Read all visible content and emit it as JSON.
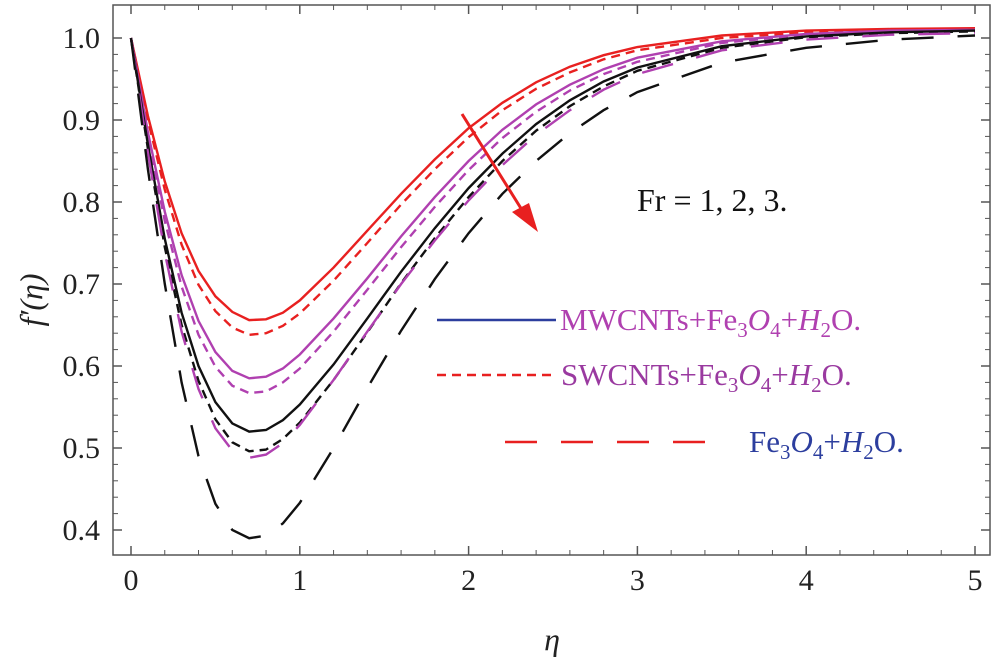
{
  "chart_data": {
    "type": "line",
    "title": "",
    "xlabel": "η",
    "ylabel": "f′(η)",
    "xlim": [
      0,
      5
    ],
    "ylim": [
      0.365,
      1.03
    ],
    "x_ticks": [
      "0",
      "1",
      "2",
      "3",
      "4",
      "5"
    ],
    "y_ticks": [
      "0.4",
      "0.5",
      "0.6",
      "0.7",
      "0.8",
      "0.9",
      "1.0"
    ],
    "annotation": "Fr = 1, 2, 3.",
    "legend": [
      {
        "parts": [
          {
            "t": "MWCNTs+Fe",
            "i": false
          },
          {
            "t": "3",
            "sub": true
          },
          {
            "t": "O",
            "i": true
          },
          {
            "t": "4",
            "sub": true
          },
          {
            "t": "+",
            "i": false
          },
          {
            "t": "H",
            "i": true
          },
          {
            "t": "2",
            "sub": true
          },
          {
            "t": "O.",
            "i": false
          }
        ],
        "text_color": "#b040b0",
        "sample_color": "#2c3e9e",
        "dash": "solid"
      },
      {
        "parts": [
          {
            "t": "SWCNTs+Fe",
            "i": false
          },
          {
            "t": "3",
            "sub": true
          },
          {
            "t": "O",
            "i": true
          },
          {
            "t": "4",
            "sub": true
          },
          {
            "t": "+",
            "i": false
          },
          {
            "t": "H",
            "i": true
          },
          {
            "t": "2",
            "sub": true
          },
          {
            "t": "O.",
            "i": false
          }
        ],
        "text_color": "#9a3aa0",
        "sample_color": "#e82020",
        "dash": "short"
      },
      {
        "parts": [
          {
            "t": "Fe",
            "i": false
          },
          {
            "t": "3",
            "sub": true
          },
          {
            "t": "O",
            "i": true
          },
          {
            "t": "4",
            "sub": true
          },
          {
            "t": "+",
            "i": false
          },
          {
            "t": "H",
            "i": true
          },
          {
            "t": "2",
            "sub": true
          },
          {
            "t": "O.",
            "i": false
          }
        ],
        "text_color": "#2c3e9e",
        "sample_color": "#e82020",
        "dash": "long"
      }
    ],
    "series": [
      {
        "color": "#e82020",
        "dash": "solid",
        "min": 0.655,
        "points": [
          [
            0,
            1.0
          ],
          [
            0.1,
            0.905
          ],
          [
            0.2,
            0.825
          ],
          [
            0.3,
            0.762
          ],
          [
            0.4,
            0.716
          ],
          [
            0.5,
            0.685
          ],
          [
            0.6,
            0.666
          ],
          [
            0.7,
            0.656
          ],
          [
            0.8,
            0.657
          ],
          [
            0.9,
            0.665
          ],
          [
            1.0,
            0.68
          ],
          [
            1.2,
            0.72
          ],
          [
            1.4,
            0.765
          ],
          [
            1.6,
            0.81
          ],
          [
            1.8,
            0.852
          ],
          [
            2.0,
            0.89
          ],
          [
            2.2,
            0.921
          ],
          [
            2.4,
            0.946
          ],
          [
            2.6,
            0.965
          ],
          [
            2.8,
            0.979
          ],
          [
            3.0,
            0.989
          ],
          [
            3.5,
            1.003
          ],
          [
            4.0,
            1.009
          ],
          [
            4.5,
            1.011
          ],
          [
            5.0,
            1.012
          ]
        ]
      },
      {
        "color": "#e82020",
        "dash": "short",
        "min": 0.637,
        "points": [
          [
            0,
            1.0
          ],
          [
            0.1,
            0.9
          ],
          [
            0.2,
            0.815
          ],
          [
            0.3,
            0.748
          ],
          [
            0.4,
            0.699
          ],
          [
            0.5,
            0.667
          ],
          [
            0.6,
            0.647
          ],
          [
            0.7,
            0.638
          ],
          [
            0.8,
            0.64
          ],
          [
            0.9,
            0.649
          ],
          [
            1.0,
            0.664
          ],
          [
            1.2,
            0.704
          ],
          [
            1.4,
            0.75
          ],
          [
            1.6,
            0.797
          ],
          [
            1.8,
            0.84
          ],
          [
            2.0,
            0.879
          ],
          [
            2.2,
            0.912
          ],
          [
            2.4,
            0.938
          ],
          [
            2.6,
            0.958
          ],
          [
            2.8,
            0.974
          ],
          [
            3.0,
            0.985
          ],
          [
            3.5,
            1.0
          ],
          [
            4.0,
            1.007
          ],
          [
            4.5,
            1.01
          ],
          [
            5.0,
            1.011
          ]
        ]
      },
      {
        "color": "#b040b0",
        "dash": "solid",
        "min": 0.585,
        "points": [
          [
            0,
            1.0
          ],
          [
            0.1,
            0.885
          ],
          [
            0.2,
            0.788
          ],
          [
            0.3,
            0.711
          ],
          [
            0.4,
            0.655
          ],
          [
            0.5,
            0.617
          ],
          [
            0.6,
            0.594
          ],
          [
            0.7,
            0.585
          ],
          [
            0.8,
            0.587
          ],
          [
            0.9,
            0.597
          ],
          [
            1.0,
            0.614
          ],
          [
            1.2,
            0.658
          ],
          [
            1.4,
            0.707
          ],
          [
            1.6,
            0.758
          ],
          [
            1.8,
            0.806
          ],
          [
            2.0,
            0.85
          ],
          [
            2.2,
            0.888
          ],
          [
            2.4,
            0.919
          ],
          [
            2.6,
            0.943
          ],
          [
            2.8,
            0.962
          ],
          [
            3.0,
            0.976
          ],
          [
            3.5,
            0.996
          ],
          [
            4.0,
            1.005
          ],
          [
            4.5,
            1.009
          ],
          [
            5.0,
            1.01
          ]
        ]
      },
      {
        "color": "#b040b0",
        "dash": "short",
        "min": 0.567,
        "points": [
          [
            0,
            1.0
          ],
          [
            0.1,
            0.88
          ],
          [
            0.2,
            0.777
          ],
          [
            0.3,
            0.697
          ],
          [
            0.4,
            0.638
          ],
          [
            0.5,
            0.599
          ],
          [
            0.6,
            0.576
          ],
          [
            0.7,
            0.567
          ],
          [
            0.8,
            0.569
          ],
          [
            0.9,
            0.58
          ],
          [
            1.0,
            0.597
          ],
          [
            1.2,
            0.642
          ],
          [
            1.4,
            0.693
          ],
          [
            1.6,
            0.745
          ],
          [
            1.8,
            0.794
          ],
          [
            2.0,
            0.839
          ],
          [
            2.2,
            0.878
          ],
          [
            2.4,
            0.91
          ],
          [
            2.6,
            0.936
          ],
          [
            2.8,
            0.956
          ],
          [
            3.0,
            0.971
          ],
          [
            3.5,
            0.994
          ],
          [
            4.0,
            1.004
          ],
          [
            4.5,
            1.008
          ],
          [
            5.0,
            1.01
          ]
        ]
      },
      {
        "color": "#111111",
        "dash": "solid",
        "min": 0.52,
        "points": [
          [
            0,
            1.0
          ],
          [
            0.1,
            0.87
          ],
          [
            0.2,
            0.755
          ],
          [
            0.3,
            0.665
          ],
          [
            0.4,
            0.6
          ],
          [
            0.5,
            0.556
          ],
          [
            0.6,
            0.53
          ],
          [
            0.7,
            0.52
          ],
          [
            0.8,
            0.522
          ],
          [
            0.9,
            0.534
          ],
          [
            1.0,
            0.553
          ],
          [
            1.2,
            0.602
          ],
          [
            1.4,
            0.658
          ],
          [
            1.6,
            0.715
          ],
          [
            1.8,
            0.768
          ],
          [
            2.0,
            0.817
          ],
          [
            2.2,
            0.859
          ],
          [
            2.4,
            0.895
          ],
          [
            2.6,
            0.924
          ],
          [
            2.8,
            0.947
          ],
          [
            3.0,
            0.964
          ],
          [
            3.5,
            0.99
          ],
          [
            4.0,
            1.002
          ],
          [
            4.5,
            1.007
          ],
          [
            5.0,
            1.009
          ]
        ]
      },
      {
        "color": "#111111",
        "dash": "short",
        "min": 0.495,
        "points": [
          [
            0,
            1.0
          ],
          [
            0.1,
            0.865
          ],
          [
            0.2,
            0.745
          ],
          [
            0.3,
            0.65
          ],
          [
            0.4,
            0.582
          ],
          [
            0.5,
            0.535
          ],
          [
            0.6,
            0.507
          ],
          [
            0.7,
            0.496
          ],
          [
            0.8,
            0.498
          ],
          [
            0.9,
            0.511
          ],
          [
            1.0,
            0.531
          ],
          [
            1.2,
            0.583
          ],
          [
            1.4,
            0.641
          ],
          [
            1.6,
            0.701
          ],
          [
            1.8,
            0.756
          ],
          [
            2.0,
            0.806
          ],
          [
            2.2,
            0.85
          ],
          [
            2.4,
            0.887
          ],
          [
            2.6,
            0.917
          ],
          [
            2.8,
            0.941
          ],
          [
            3.0,
            0.96
          ],
          [
            3.5,
            0.988
          ],
          [
            4.0,
            1.001
          ],
          [
            4.5,
            1.006
          ],
          [
            5.0,
            1.008
          ]
        ]
      },
      {
        "color": "#b040b0",
        "dash": "long",
        "min": 0.488,
        "points": [
          [
            0,
            1.0
          ],
          [
            0.1,
            0.86
          ],
          [
            0.2,
            0.738
          ],
          [
            0.3,
            0.642
          ],
          [
            0.4,
            0.572
          ],
          [
            0.5,
            0.524
          ],
          [
            0.6,
            0.497
          ],
          [
            0.7,
            0.488
          ],
          [
            0.8,
            0.492
          ],
          [
            0.9,
            0.506
          ],
          [
            1.0,
            0.528
          ],
          [
            1.2,
            0.583
          ],
          [
            1.4,
            0.642
          ],
          [
            1.6,
            0.7
          ],
          [
            1.8,
            0.753
          ],
          [
            2.0,
            0.802
          ],
          [
            2.2,
            0.845
          ],
          [
            2.4,
            0.882
          ],
          [
            2.6,
            0.912
          ],
          [
            2.8,
            0.937
          ],
          [
            3.0,
            0.956
          ],
          [
            3.5,
            0.985
          ],
          [
            4.0,
            0.998
          ],
          [
            4.5,
            1.004
          ],
          [
            5.0,
            1.006
          ]
        ]
      },
      {
        "color": "#111111",
        "dash": "long",
        "min": 0.39,
        "points": [
          [
            0,
            1.0
          ],
          [
            0.1,
            0.84
          ],
          [
            0.2,
            0.7
          ],
          [
            0.3,
            0.58
          ],
          [
            0.4,
            0.49
          ],
          [
            0.5,
            0.432
          ],
          [
            0.6,
            0.4
          ],
          [
            0.7,
            0.39
          ],
          [
            0.8,
            0.393
          ],
          [
            0.9,
            0.408
          ],
          [
            1.0,
            0.433
          ],
          [
            1.2,
            0.5
          ],
          [
            1.4,
            0.573
          ],
          [
            1.6,
            0.643
          ],
          [
            1.8,
            0.706
          ],
          [
            2.0,
            0.762
          ],
          [
            2.2,
            0.81
          ],
          [
            2.4,
            0.85
          ],
          [
            2.6,
            0.884
          ],
          [
            2.8,
            0.912
          ],
          [
            3.0,
            0.934
          ],
          [
            3.5,
            0.97
          ],
          [
            4.0,
            0.988
          ],
          [
            4.5,
            0.998
          ],
          [
            5.0,
            1.003
          ]
        ]
      }
    ]
  }
}
